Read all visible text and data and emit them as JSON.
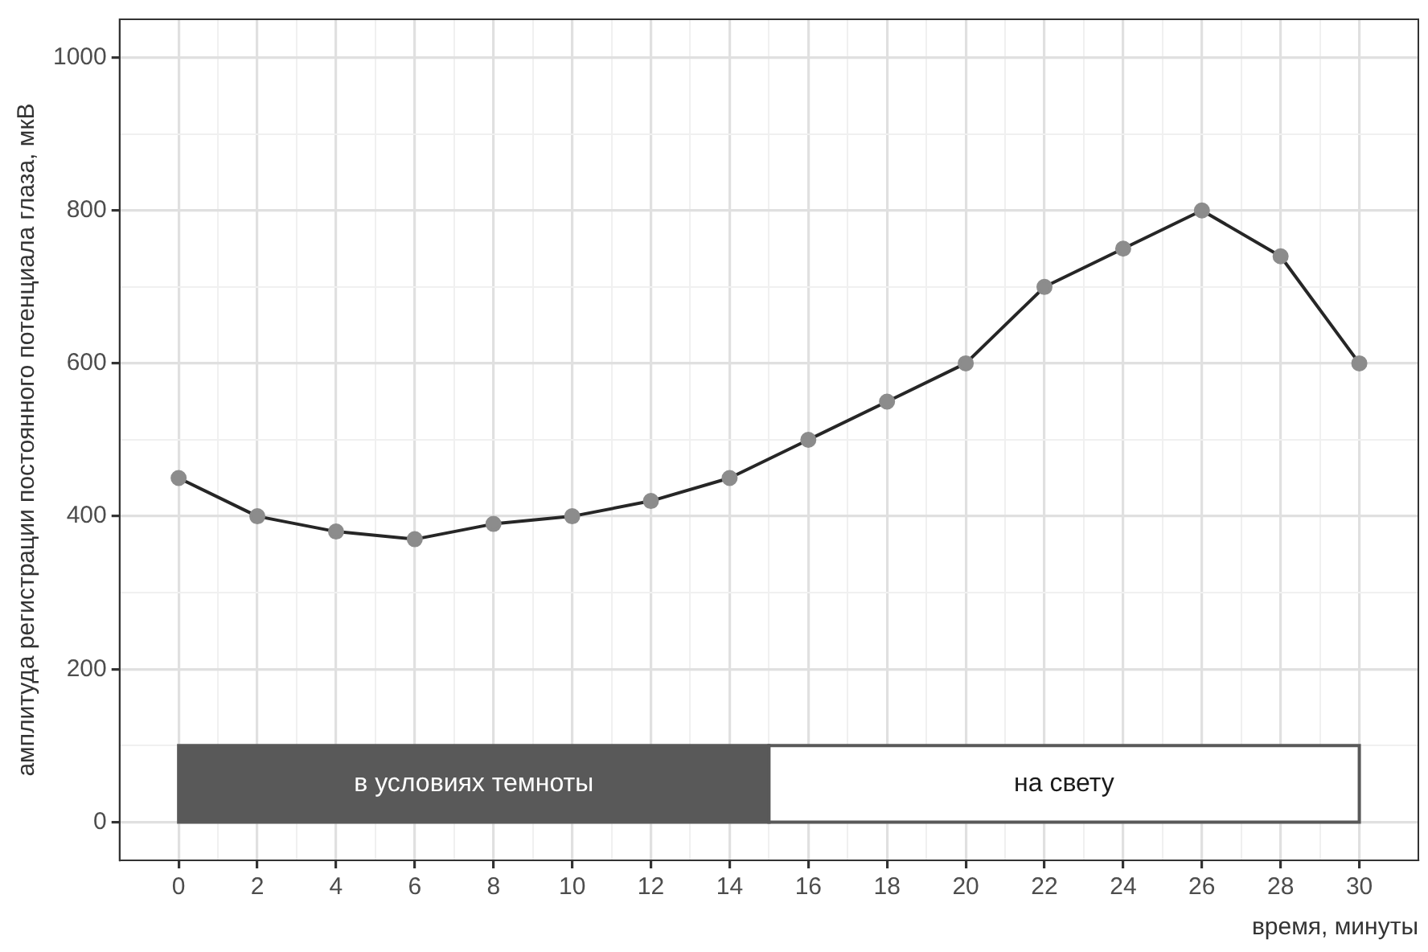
{
  "chart_data": {
    "type": "line",
    "xlabel": "время, минуты",
    "ylabel": "амплитуда регистрации постоянного потенциала глаза, мкВ",
    "x": [
      0,
      2,
      4,
      6,
      8,
      10,
      12,
      14,
      16,
      18,
      20,
      22,
      24,
      26,
      28,
      30
    ],
    "series": [
      {
        "color": "#262626",
        "colors": [
          "#8c8c8c",
          "#8c8c8c",
          "#8c8c8c",
          "#8c8c8c",
          "#8c8c8c",
          "#8c8c8c",
          "#8c8c8c",
          "#8c8c8c",
          "#8c8c8c",
          "#8c8c8c",
          "#8c8c8c",
          "#8c8c8c",
          "#8c8c8c",
          "#8c8c8c",
          "#8c8c8c",
          "#8c8c8c"
        ],
        "values": [
          450,
          400,
          380,
          370,
          390,
          400,
          420,
          450,
          500,
          550,
          600,
          700,
          750,
          800,
          740,
          600
        ]
      }
    ],
    "xlim": [
      -1.5,
      31.5
    ],
    "xticks": [
      0,
      {
        "value": 1,
        "label": null
      },
      2,
      {
        "value": 3,
        "label": null
      },
      4,
      {
        "value": 5,
        "label": null
      },
      6,
      {
        "value": 7,
        "label": null
      },
      8,
      {
        "value": 9,
        "label": null
      },
      10,
      {
        "value": 11,
        "label": null
      },
      12,
      {
        "value": 13,
        "label": null
      },
      14,
      {
        "value": 15,
        "label": null
      },
      16,
      {
        "value": 17,
        "label": null
      },
      18,
      {
        "value": 19,
        "label": null
      },
      20,
      {
        "value": 21,
        "label": null
      },
      22,
      {
        "value": 23,
        "label": null
      },
      24,
      {
        "value": 25,
        "label": null
      },
      26,
      {
        "value": 27,
        "label": null
      },
      28,
      {
        "value": 29,
        "label": null
      },
      30
    ],
    "ylim": [
      -50,
      1050
    ],
    "yticks": [
      0,
      {
        "value": 100,
        "label": null
      },
      200,
      {
        "value": 300,
        "label": null
      },
      400,
      {
        "value": 500,
        "label": null
      },
      600,
      {
        "value": 700,
        "label": null
      },
      800,
      {
        "value": 900,
        "label": null
      },
      1000
    ],
    "bands": [
      {
        "axis": "x",
        "from": 0,
        "to": 15,
        "label": "в условиях темноты",
        "color": "#595959"
      },
      {
        "axis": "x",
        "from": 15,
        "to": 30,
        "label": "на свету",
        "color": "#ffffff"
      }
    ],
    "grid": true,
    "legend": false,
    "marker": "circle",
    "line_style": "solid"
  }
}
